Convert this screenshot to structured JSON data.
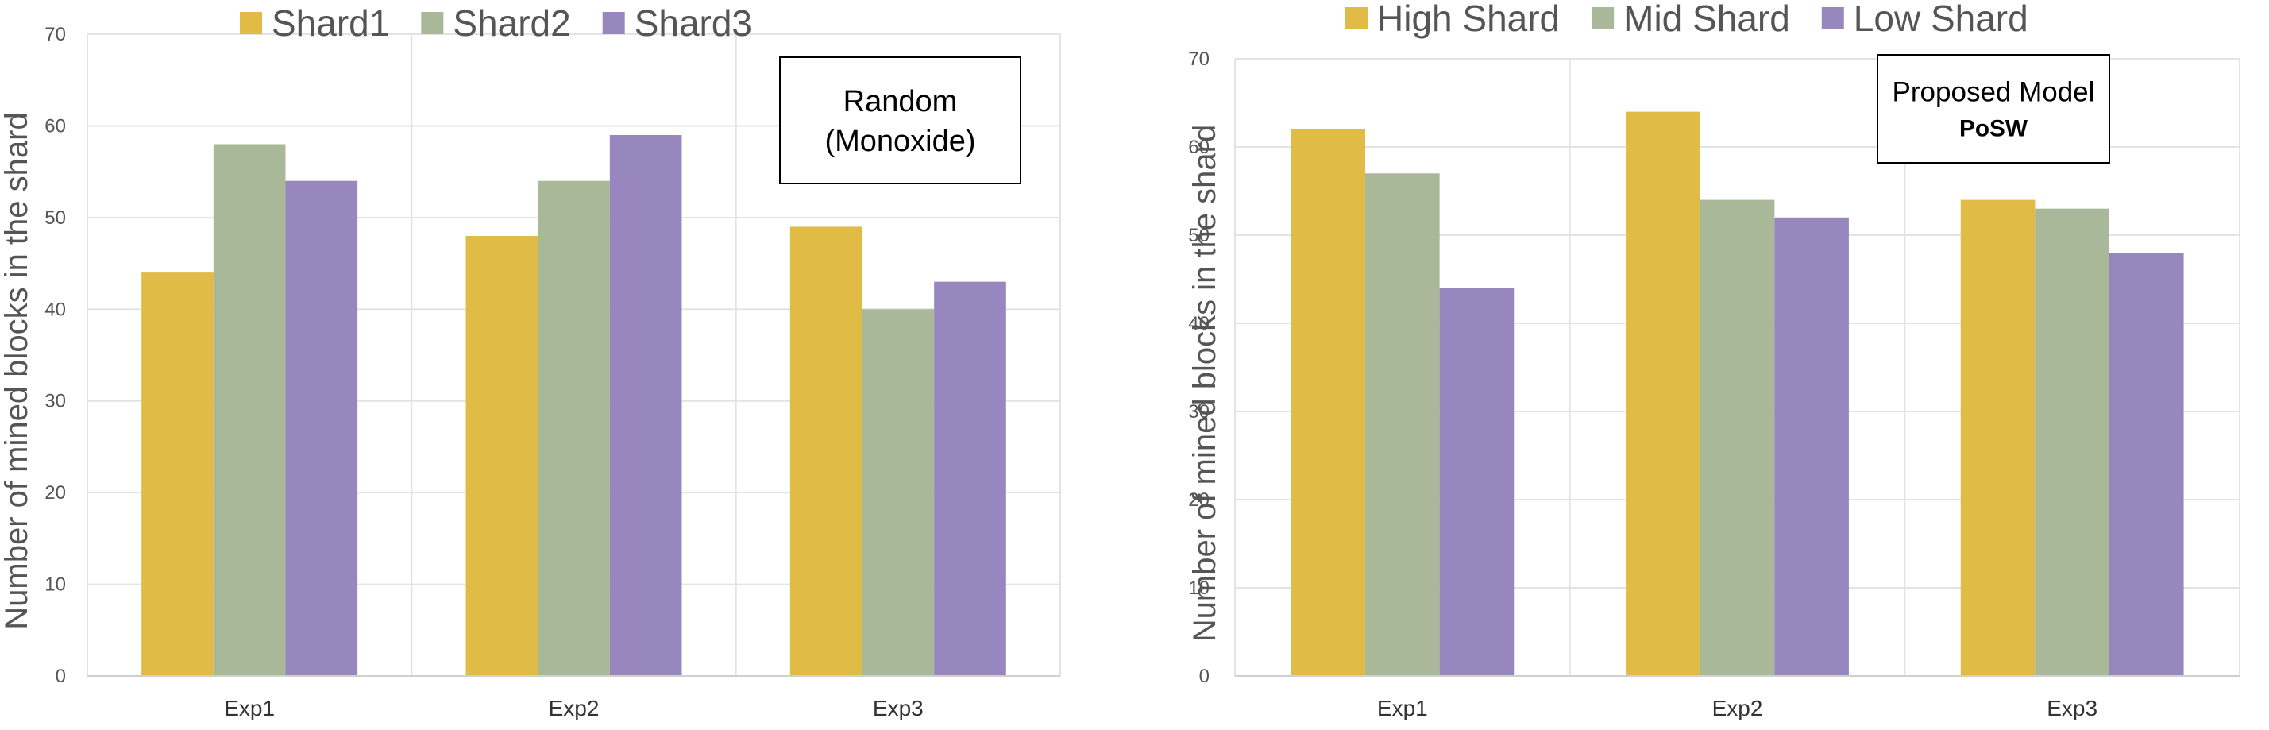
{
  "chart_data": [
    {
      "type": "bar",
      "title": "",
      "box_label": [
        "Random",
        "(Monoxide)"
      ],
      "box_label_bold": [
        false,
        false
      ],
      "xlabel": "",
      "ylabel": "Number of mined blocks in the shard",
      "categories": [
        "Exp1",
        "Exp2",
        "Exp3"
      ],
      "series": [
        {
          "name": "Shard1",
          "color": "#E0BC47",
          "values": [
            44,
            48,
            49
          ]
        },
        {
          "name": "Shard2",
          "color": "#A8B898",
          "values": [
            58,
            54,
            40
          ]
        },
        {
          "name": "Shard3",
          "color": "#9887BE",
          "values": [
            54,
            59,
            43
          ]
        }
      ],
      "ylim": [
        0,
        70
      ],
      "yticks": [
        0,
        10,
        20,
        30,
        40,
        50,
        60,
        70
      ],
      "grid": true,
      "legend": "top"
    },
    {
      "type": "bar",
      "title": "",
      "box_label": [
        "Proposed Model",
        "PoSW"
      ],
      "box_label_bold": [
        false,
        true
      ],
      "xlabel": "",
      "ylabel": "Number of mined blocks in the shard",
      "categories": [
        "Exp1",
        "Exp2",
        "Exp3"
      ],
      "series": [
        {
          "name": "High Shard",
          "color": "#E0BC47",
          "values": [
            62,
            64,
            54
          ]
        },
        {
          "name": "Mid Shard",
          "color": "#A8B898",
          "values": [
            57,
            54,
            53
          ]
        },
        {
          "name": "Low Shard",
          "color": "#9887BE",
          "values": [
            44,
            52,
            48
          ]
        }
      ],
      "ylim": [
        0,
        70
      ],
      "yticks": [
        0,
        10,
        20,
        30,
        40,
        50,
        60,
        70
      ],
      "grid": true,
      "legend": "top"
    }
  ]
}
